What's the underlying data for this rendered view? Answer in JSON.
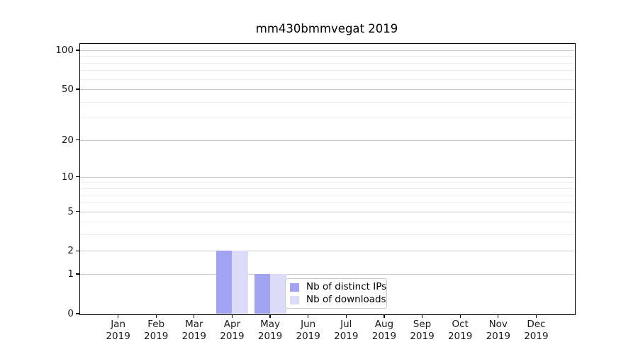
{
  "figure": {
    "title": "mm430bmmvegat 2019"
  },
  "chart_data": {
    "type": "bar",
    "title": "mm430bmmvegat 2019",
    "categories": [
      "Jan 2019",
      "Feb 2019",
      "Mar 2019",
      "Apr 2019",
      "May 2019",
      "Jun 2019",
      "Jul 2019",
      "Aug 2019",
      "Sep 2019",
      "Oct 2019",
      "Nov 2019",
      "Dec 2019"
    ],
    "series": [
      {
        "name": "Nb of distinct IPs",
        "color": "#a3a3f3",
        "values": [
          0,
          0,
          0,
          2,
          1,
          0,
          0,
          0,
          0,
          0,
          0,
          0
        ]
      },
      {
        "name": "Nb of downloads",
        "color": "#dcdcf8",
        "values": [
          0,
          0,
          0,
          2,
          1,
          0,
          0,
          0,
          0,
          0,
          0,
          0
        ]
      }
    ],
    "xlabel": "",
    "ylabel": "",
    "yscale": "log1p",
    "ylim": [
      0,
      112
    ],
    "yticks": [
      0,
      1,
      2,
      5,
      10,
      20,
      50,
      100
    ],
    "minor_gridlines": [
      3,
      4,
      6,
      7,
      8,
      9,
      30,
      40,
      60,
      70,
      80,
      90
    ],
    "grid": true,
    "legend": {
      "position": "inside lower center-right",
      "items": [
        "Nb of distinct IPs",
        "Nb of downloads"
      ]
    },
    "colors": {
      "major_grid": "#c8c8c8",
      "minor_grid": "#ededed",
      "spine": "#000000",
      "text": "#1a1a1a",
      "legend_border": "#c9c9c9"
    }
  }
}
